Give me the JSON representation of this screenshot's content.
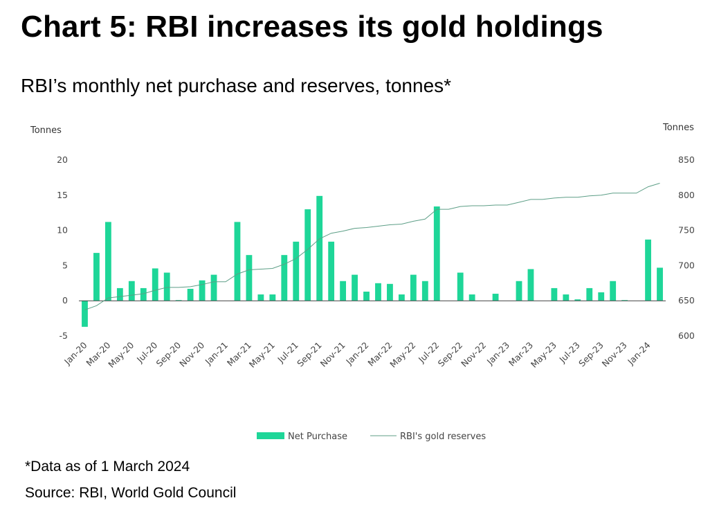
{
  "title": "Chart 5: RBI increases its gold holdings",
  "subtitle": "RBI’s monthly net purchase and reserves, tonnes*",
  "note": "*Data as of 1 March 2024",
  "source": "Source: RBI, World Gold Council",
  "colors": {
    "bar": "#1ed698",
    "line": "#5c9e86",
    "axis": "#404040",
    "grid": "#d9d9d9"
  },
  "chart_data": {
    "type": "bar",
    "left_axis": {
      "label": "Tonnes",
      "ylim": [
        -5,
        20
      ],
      "ticks": [
        -5,
        0,
        5,
        10,
        15,
        20
      ]
    },
    "right_axis": {
      "label": "Tonnes",
      "ylim": [
        600,
        850
      ],
      "ticks": [
        600,
        650,
        700,
        750,
        800,
        850
      ]
    },
    "categories": [
      "Jan-20",
      "Feb-20",
      "Mar-20",
      "Apr-20",
      "May-20",
      "Jun-20",
      "Jul-20",
      "Aug-20",
      "Sep-20",
      "Oct-20",
      "Nov-20",
      "Dec-20",
      "Jan-21",
      "Feb-21",
      "Mar-21",
      "Apr-21",
      "May-21",
      "Jun-21",
      "Jul-21",
      "Aug-21",
      "Sep-21",
      "Oct-21",
      "Nov-21",
      "Dec-21",
      "Jan-22",
      "Feb-22",
      "Mar-22",
      "Apr-22",
      "May-22",
      "Jun-22",
      "Jul-22",
      "Aug-22",
      "Sep-22",
      "Oct-22",
      "Nov-22",
      "Dec-22",
      "Jan-23",
      "Feb-23",
      "Mar-23",
      "Apr-23",
      "May-23",
      "Jun-23",
      "Jul-23",
      "Aug-23",
      "Sep-23",
      "Oct-23",
      "Nov-23",
      "Dec-23",
      "Jan-24",
      "Feb-24"
    ],
    "tick_labels": [
      "Jan-20",
      "Mar-20",
      "May-20",
      "Jul-20",
      "Sep-20",
      "Nov-20",
      "Jan-21",
      "Mar-21",
      "May-21",
      "Jul-21",
      "Sep-21",
      "Nov-21",
      "Jan-22",
      "Mar-22",
      "May-22",
      "Jul-22",
      "Sep-22",
      "Nov-22",
      "Jan-23",
      "Mar-23",
      "May-23",
      "Jul-23",
      "Sep-23",
      "Nov-23",
      "Jan-24"
    ],
    "series": [
      {
        "name": "Net Purchase",
        "type": "bar",
        "axis": "left",
        "values": [
          -3.7,
          6.8,
          11.2,
          1.8,
          2.8,
          1.8,
          4.6,
          4.0,
          0.1,
          1.7,
          2.9,
          3.7,
          0.0,
          11.2,
          6.5,
          0.9,
          0.9,
          6.5,
          8.4,
          13.0,
          14.9,
          8.4,
          2.8,
          3.7,
          1.3,
          2.5,
          2.4,
          0.9,
          3.7,
          2.8,
          13.4,
          0.0,
          4.0,
          0.9,
          0.0,
          1.0,
          0.0,
          2.8,
          4.5,
          0.0,
          1.8,
          0.9,
          0.2,
          1.8,
          1.2,
          2.8,
          0.1,
          0.0,
          8.7,
          4.7
        ]
      },
      {
        "name": "RBI's gold reserves",
        "type": "line",
        "axis": "right",
        "values": [
          637,
          643,
          654,
          656,
          658,
          660,
          665,
          669,
          669,
          670,
          673,
          677,
          677,
          688,
          694,
          695,
          696,
          702,
          710,
          723,
          738,
          746,
          749,
          753,
          754,
          756,
          758,
          759,
          763,
          766,
          780,
          780,
          784,
          785,
          785,
          786,
          786,
          790,
          794,
          794,
          796,
          797,
          797,
          799,
          800,
          803,
          803,
          803,
          812,
          817
        ]
      }
    ],
    "legend": {
      "position": "bottom"
    },
    "grid": false
  }
}
